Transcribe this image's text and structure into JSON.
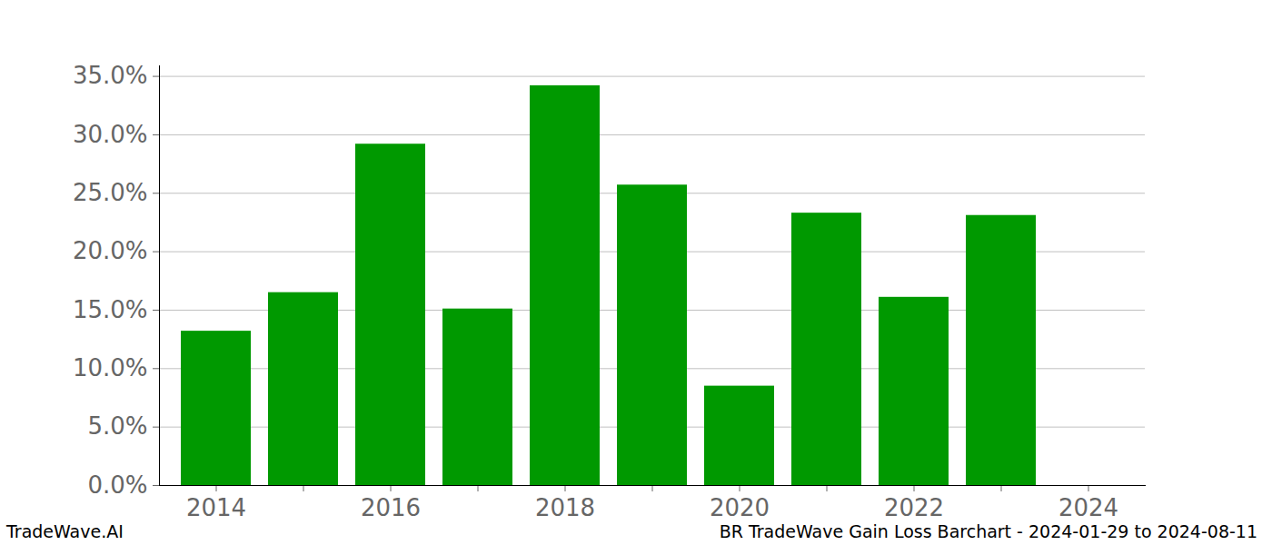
{
  "chart_data": {
    "type": "bar",
    "title": "BR TradeWave Gain Loss Barchart - 2024-01-29 to 2024-08-11",
    "watermark": "TradeWave.AI",
    "categories": [
      "2014",
      null,
      "2016",
      null,
      "2018",
      null,
      "2020",
      null,
      "2022",
      null,
      "2024"
    ],
    "values": [
      13.2,
      16.5,
      29.2,
      15.1,
      34.2,
      25.7,
      8.5,
      23.3,
      16.1,
      23.1,
      null
    ],
    "color": "#009900",
    "ylim": [
      0,
      35.9
    ],
    "yticks": [
      {
        "value": 0,
        "label": "0.0%"
      },
      {
        "value": 5,
        "label": "5.0%"
      },
      {
        "value": 10,
        "label": "10.0%"
      },
      {
        "value": 15,
        "label": "15.0%"
      },
      {
        "value": 20,
        "label": "20.0%"
      },
      {
        "value": 25,
        "label": "25.0%"
      },
      {
        "value": 30,
        "label": "30.0%"
      },
      {
        "value": 35,
        "label": "35.0%"
      }
    ],
    "grid": true
  }
}
